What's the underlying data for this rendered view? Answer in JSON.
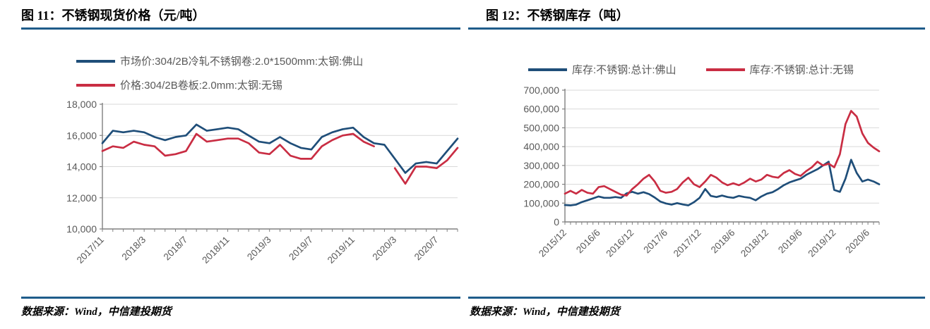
{
  "colors": {
    "series_blue": "#1F4E79",
    "series_red": "#C92D43",
    "rule_blue": "#1F5C8A",
    "gridline": "#D9D9D9",
    "axis": "#808080",
    "tick_label": "#595959"
  },
  "figures": [
    {
      "title": "图 11：不锈钢现货价格（元/吨）",
      "source": "数据来源：Wind，中信建投期货",
      "legend": [
        {
          "label": "市场价:304/2B冷轧不锈钢卷:2.0*1500mm:太钢:佛山",
          "color": "#1F4E79"
        },
        {
          "label": "价格:304/2B卷板:2.0mm:太钢:无锡",
          "color": "#C92D43"
        }
      ]
    },
    {
      "title": "图 12：不锈钢库存（吨）",
      "source": "数据来源：Wind，中信建投期货",
      "legend": [
        {
          "label": "库存:不锈钢:总计:佛山",
          "color": "#1F4E79"
        },
        {
          "label": "库存:不锈钢:总计:无锡",
          "color": "#C92D43"
        }
      ]
    }
  ],
  "chart_data": [
    {
      "type": "line",
      "title": "图 11：不锈钢现货价格（元/吨）",
      "xlabel": "",
      "ylabel": "",
      "ylim": [
        10000,
        18000
      ],
      "yticks": [
        10000,
        12000,
        14000,
        16000,
        18000
      ],
      "ytick_labels": [
        "10,000",
        "12,000",
        "14,000",
        "16,000",
        "18,000"
      ],
      "grid": true,
      "legend_position": "top",
      "x_tick_labels": [
        "2017/11",
        "2018/3",
        "2018/7",
        "2018/11",
        "2019/3",
        "2019/7",
        "2019/11",
        "2020/3",
        "2020/7"
      ],
      "label_every": 4,
      "x": [
        "2017/11",
        "2017/12",
        "2018/1",
        "2018/2",
        "2018/3",
        "2018/4",
        "2018/5",
        "2018/6",
        "2018/7",
        "2018/8",
        "2018/9",
        "2018/10",
        "2018/11",
        "2018/12",
        "2019/1",
        "2019/2",
        "2019/3",
        "2019/4",
        "2019/5",
        "2019/6",
        "2019/7",
        "2019/8",
        "2019/9",
        "2019/10",
        "2019/11",
        "2019/12",
        "2020/1",
        "2020/2",
        "2020/3",
        "2020/4",
        "2020/5",
        "2020/6",
        "2020/7",
        "2020/8",
        "2020/9"
      ],
      "series": [
        {
          "name": "市场价:304/2B冷轧不锈钢卷:2.0*1500mm:太钢:佛山",
          "color": "#1F4E79",
          "values": [
            15500,
            16300,
            16200,
            16300,
            16200,
            15900,
            15700,
            15900,
            16000,
            16700,
            16300,
            16400,
            16500,
            16400,
            16000,
            15600,
            15500,
            15900,
            15500,
            15200,
            15100,
            15900,
            16200,
            16400,
            16500,
            15900,
            15500,
            15400,
            14500,
            13600,
            14200,
            14300,
            14200,
            15000,
            15800
          ]
        },
        {
          "name": "价格:304/2B卷板:2.0mm:太钢:无锡",
          "color": "#C92D43",
          "values": [
            15000,
            15300,
            15200,
            15600,
            15400,
            15300,
            14700,
            14800,
            15000,
            16100,
            15600,
            15700,
            15800,
            15800,
            15500,
            14900,
            14800,
            15400,
            14700,
            14500,
            14500,
            15300,
            15700,
            16000,
            16100,
            15600,
            15300,
            null,
            13900,
            12900,
            14000,
            14000,
            13900,
            14400,
            15200
          ]
        }
      ]
    },
    {
      "type": "line",
      "title": "图 12：不锈钢库存（吨）",
      "xlabel": "",
      "ylabel": "",
      "ylim": [
        0,
        700000
      ],
      "yticks": [
        0,
        100000,
        200000,
        300000,
        400000,
        500000,
        600000,
        700000
      ],
      "ytick_labels": [
        "0",
        "100,000",
        "200,000",
        "300,000",
        "400,000",
        "500,000",
        "600,000",
        "700,000"
      ],
      "grid": true,
      "legend_position": "top",
      "x_tick_labels": [
        "2015/12",
        "2016/6",
        "2016/12",
        "2017/6",
        "2017/12",
        "2018/6",
        "2018/12",
        "2019/6",
        "2019/12",
        "2020/6"
      ],
      "label_every": 6,
      "x": [
        "2015/12",
        "2016/1",
        "2016/2",
        "2016/3",
        "2016/4",
        "2016/5",
        "2016/6",
        "2016/7",
        "2016/8",
        "2016/9",
        "2016/10",
        "2016/11",
        "2016/12",
        "2017/1",
        "2017/2",
        "2017/3",
        "2017/4",
        "2017/5",
        "2017/6",
        "2017/7",
        "2017/8",
        "2017/9",
        "2017/10",
        "2017/11",
        "2017/12",
        "2018/1",
        "2018/2",
        "2018/3",
        "2018/4",
        "2018/5",
        "2018/6",
        "2018/7",
        "2018/8",
        "2018/9",
        "2018/10",
        "2018/11",
        "2018/12",
        "2019/1",
        "2019/2",
        "2019/3",
        "2019/4",
        "2019/5",
        "2019/6",
        "2019/7",
        "2019/8",
        "2019/9",
        "2019/10",
        "2019/11",
        "2019/12",
        "2020/1",
        "2020/2",
        "2020/3",
        "2020/4",
        "2020/5",
        "2020/6",
        "2020/7",
        "2020/8"
      ],
      "series": [
        {
          "name": "库存:不锈钢:总计:佛山",
          "color": "#1F4E79",
          "values": [
            90000,
            88000,
            92000,
            105000,
            115000,
            125000,
            135000,
            128000,
            128000,
            132000,
            128000,
            152000,
            160000,
            150000,
            158000,
            148000,
            130000,
            108000,
            98000,
            92000,
            100000,
            93000,
            88000,
            105000,
            128000,
            175000,
            138000,
            132000,
            140000,
            132000,
            128000,
            138000,
            132000,
            128000,
            115000,
            135000,
            150000,
            158000,
            175000,
            195000,
            210000,
            220000,
            230000,
            250000,
            265000,
            280000,
            300000,
            320000,
            170000,
            160000,
            230000,
            330000,
            260000,
            215000,
            225000,
            215000,
            200000
          ]
        },
        {
          "name": "库存:不锈钢:总计:无锡",
          "color": "#C92D43",
          "values": [
            150000,
            165000,
            150000,
            170000,
            155000,
            150000,
            185000,
            190000,
            175000,
            160000,
            145000,
            140000,
            175000,
            200000,
            230000,
            250000,
            215000,
            165000,
            155000,
            160000,
            175000,
            210000,
            235000,
            200000,
            185000,
            215000,
            250000,
            235000,
            210000,
            195000,
            205000,
            195000,
            210000,
            230000,
            215000,
            225000,
            250000,
            240000,
            235000,
            260000,
            275000,
            255000,
            245000,
            270000,
            290000,
            320000,
            300000,
            310000,
            290000,
            360000,
            520000,
            590000,
            560000,
            470000,
            420000,
            395000,
            375000
          ]
        }
      ]
    }
  ]
}
